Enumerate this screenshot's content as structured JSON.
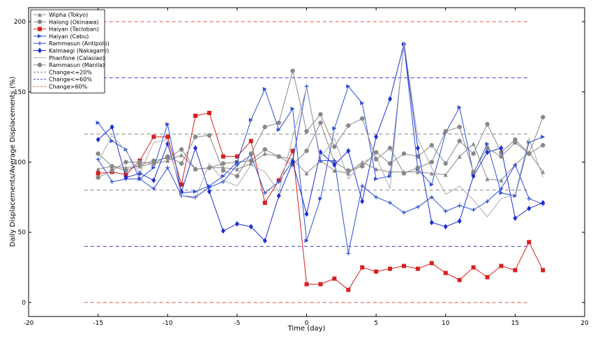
{
  "chart_data": {
    "type": "line",
    "xlabel": "Time (day)",
    "ylabel": "Daily Displacements/Average Displacements (%)",
    "xlim": [
      -20,
      20
    ],
    "ylim": [
      -10,
      210
    ],
    "xticks": [
      -20,
      -15,
      -10,
      -5,
      0,
      5,
      10,
      15,
      20
    ],
    "yticks": [
      0,
      50,
      100,
      150,
      200
    ],
    "grid": false,
    "legend_position": "top-left",
    "threshold_lines": [
      {
        "y": 120,
        "color": "#808080",
        "band": "Change<=20%"
      },
      {
        "y": 80,
        "color": "#808080",
        "band": "Change<=20%"
      },
      {
        "y": 160,
        "color": "#3b3bdb",
        "band": "Change<=60%"
      },
      {
        "y": 40,
        "color": "#3b3bdb",
        "band": "Change<=60%"
      },
      {
        "y": 200,
        "color": "#e05050",
        "band": "Change>60%"
      },
      {
        "y": 0,
        "color": "#e05050",
        "band": "Change>60%"
      }
    ],
    "threshold_xrange": [
      -16,
      16
    ],
    "series": [
      {
        "name": "Wipha (Tokyo)",
        "color": "#888888",
        "marker": "triangle-up",
        "x": [
          -15,
          -14,
          -13,
          -12,
          -11,
          -10,
          -9,
          -8,
          -7,
          -6,
          -5,
          -4,
          -3,
          -2,
          -1,
          0,
          1,
          2,
          3,
          4,
          5,
          6,
          7,
          8,
          9,
          10,
          11,
          12,
          13,
          14,
          15,
          16,
          17
        ],
        "y": [
          95,
          97,
          96,
          97,
          99,
          101,
          105,
          95,
          96,
          96,
          95,
          99,
          106,
          104,
          102,
          92,
          101,
          94,
          92,
          100,
          95,
          93,
          93,
          93,
          92,
          91,
          104,
          113,
          88,
          87,
          98,
          107,
          93
        ]
      },
      {
        "name": "Halong (Okinawa)",
        "color": "#888888",
        "marker": "circle",
        "x": [
          -15,
          -14,
          -13,
          -12,
          -11,
          -10,
          -9,
          -8,
          -7,
          -6,
          -5,
          -4,
          -3,
          -2,
          -1,
          0,
          1,
          2,
          3,
          4,
          5,
          6,
          7,
          8,
          9,
          10,
          11,
          12,
          13,
          14,
          15,
          16,
          17
        ],
        "y": [
          106,
          97,
          94,
          98,
          101,
          103,
          109,
          95,
          96,
          99,
          100,
          101,
          109,
          104,
          98,
          108,
          128,
          100,
          94,
          97,
          107,
          99,
          106,
          104,
          112,
          99,
          115,
          106,
          127,
          107,
          116,
          106,
          112
        ]
      },
      {
        "name": "Haiyan (Tacloban)",
        "color": "#d62020",
        "marker": "square",
        "x": [
          -15,
          -14,
          -13,
          -12,
          -11,
          -10,
          -9,
          -8,
          -7,
          -6,
          -5,
          -4,
          -3,
          -2,
          -1,
          0,
          1,
          2,
          3,
          4,
          5,
          6,
          7,
          8,
          9,
          10,
          11,
          12,
          13,
          14,
          15,
          16,
          17
        ],
        "y": [
          92,
          93,
          91,
          101,
          118,
          118,
          84,
          133,
          135,
          104,
          104,
          115,
          71,
          87,
          108,
          13,
          13,
          17,
          9,
          25,
          22,
          24,
          26,
          24,
          28,
          21,
          16,
          25,
          18,
          26,
          23,
          43,
          23
        ]
      },
      {
        "name": "Haiyan (Cebu)",
        "color": "#2e4fd6",
        "marker": "triangle-right",
        "x": [
          -15,
          -14,
          -13,
          -12,
          -11,
          -10,
          -9,
          -8,
          -7,
          -6,
          -5,
          -4,
          -3,
          -2,
          -1,
          0,
          1,
          2,
          3,
          4,
          5,
          6,
          7,
          8,
          9,
          10,
          11,
          12,
          13,
          14,
          15,
          16,
          17
        ],
        "y": [
          128,
          115,
          109,
          88,
          96,
          127,
          78,
          79,
          83,
          90,
          100,
          130,
          152,
          123,
          138,
          44,
          74,
          124,
          154,
          142,
          88,
          90,
          184,
          95,
          84,
          121,
          139,
          92,
          113,
          78,
          76,
          114,
          118
        ]
      },
      {
        "name": "Rammasun (Antipolo)",
        "color": "#2e4fd6",
        "marker": "plus",
        "x": [
          -15,
          -14,
          -13,
          -12,
          -11,
          -10,
          -9,
          -8,
          -7,
          -6,
          -5,
          -4,
          -3,
          -2,
          -1,
          0,
          1,
          2,
          3,
          4,
          5,
          6,
          7,
          8,
          9,
          10,
          11,
          12,
          13,
          14,
          15,
          16,
          17
        ],
        "y": [
          102,
          86,
          88,
          88,
          81,
          96,
          76,
          75,
          82,
          86,
          98,
          105,
          78,
          86,
          101,
          154,
          101,
          101,
          35,
          83,
          75,
          71,
          64,
          68,
          75,
          65,
          69,
          66,
          72,
          81,
          98,
          74,
          70
        ]
      },
      {
        "name": "Kalmaegi (Nakagami)",
        "color": "#1c2fd0",
        "marker": "diamond",
        "x": [
          -15,
          -14,
          -13,
          -12,
          -11,
          -10,
          -9,
          -8,
          -7,
          -6,
          -5,
          -4,
          -3,
          -2,
          -1,
          0,
          1,
          2,
          3,
          4,
          5,
          6,
          7,
          8,
          9,
          10,
          11,
          12,
          13,
          14,
          15,
          16,
          17
        ],
        "y": [
          116,
          125,
          89,
          92,
          87,
          113,
          79,
          110,
          79,
          51,
          56,
          54,
          44,
          76,
          100,
          63,
          107,
          98,
          108,
          72,
          118,
          145,
          184,
          110,
          57,
          54,
          58,
          90,
          107,
          110,
          60,
          67,
          71
        ]
      },
      {
        "name": "Phanfone (Calasiao)",
        "color": "#aaaaaa",
        "marker": "none",
        "x": [
          -15,
          -14,
          -13,
          -12,
          -11,
          -10,
          -9,
          -8,
          -7,
          -6,
          -5,
          -4,
          -3,
          -2,
          -1,
          0,
          1,
          2,
          3,
          4,
          5,
          6,
          7,
          8,
          9,
          10,
          11,
          12,
          13,
          14,
          15,
          16,
          17
        ],
        "y": [
          100,
          119,
          108,
          92,
          114,
          116,
          76,
          74,
          99,
          87,
          83,
          98,
          93,
          79,
          118,
          153,
          103,
          117,
          88,
          100,
          104,
          81,
          186,
          117,
          96,
          77,
          83,
          73,
          61,
          74,
          77,
          117,
          89
        ]
      },
      {
        "name": "Rammasun (Manila)",
        "color": "#888888",
        "marker": "circle",
        "x": [
          -15,
          -14,
          -13,
          -12,
          -11,
          -10,
          -9,
          -8,
          -7,
          -6,
          -5,
          -4,
          -3,
          -2,
          -1,
          0,
          1,
          2,
          3,
          4,
          5,
          6,
          7,
          8,
          9,
          10,
          11,
          12,
          13,
          14,
          15,
          16,
          17
        ],
        "y": [
          89,
          94,
          100,
          100,
          99,
          104,
          99,
          118,
          119,
          94,
          90,
          106,
          125,
          128,
          165,
          122,
          134,
          111,
          126,
          131,
          102,
          110,
          92,
          96,
          100,
          122,
          125,
          93,
          110,
          104,
          114,
          106,
          132
        ]
      }
    ],
    "legend_extra": [
      {
        "name": "Change<=20%",
        "color": "#808080"
      },
      {
        "name": "Change<=60%",
        "color": "#3b3bdb"
      },
      {
        "name": "Change>60%",
        "color": "#e05050"
      }
    ]
  }
}
